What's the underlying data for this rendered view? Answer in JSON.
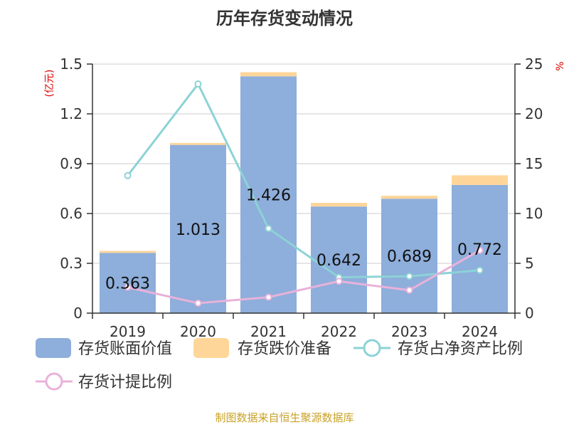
{
  "colors": {
    "book_value": "#8EAEDB",
    "impairment": "#FFD699",
    "ratio_net_assets": "#8CD3D6",
    "provision_ratio": "#E8B2DA",
    "axis": "#333333",
    "grid": "#CCCCCC",
    "unit_label": "#E00000",
    "footer": "#C9A227"
  },
  "chart_data": {
    "type": "bar",
    "title": "历年存货变动情况",
    "categories": [
      "2019",
      "2020",
      "2021",
      "2022",
      "2023",
      "2024"
    ],
    "y_left": {
      "unit": "(亿元)",
      "ylim": [
        0,
        1.5
      ],
      "ticks": [
        "0",
        "0.3",
        "0.6",
        "0.9",
        "1.2",
        "1.5"
      ]
    },
    "y_right": {
      "unit": "%",
      "ylim": [
        0,
        25
      ],
      "ticks": [
        "0",
        "5",
        "10",
        "15",
        "20",
        "25"
      ]
    },
    "grid": true,
    "legend_position": "bottom",
    "series": [
      {
        "name": "存货账面价值",
        "kind": "bar",
        "axis": "left",
        "values": [
          0.363,
          1.013,
          1.426,
          0.642,
          0.689,
          0.772
        ],
        "labels": [
          "0.363",
          "1.013",
          "1.426",
          "0.642",
          "0.689",
          "0.772"
        ]
      },
      {
        "name": "存货跌价准备",
        "kind": "bar-stacked",
        "axis": "left",
        "values": [
          0.012,
          0.012,
          0.025,
          0.022,
          0.018,
          0.058
        ]
      },
      {
        "name": "存货占净资产比例",
        "kind": "line",
        "axis": "right",
        "values": [
          13.8,
          23.0,
          8.5,
          3.6,
          3.7,
          4.3
        ]
      },
      {
        "name": "存货计提比例",
        "kind": "line",
        "axis": "right",
        "values": [
          2.6,
          1.0,
          1.6,
          3.2,
          2.3,
          6.3
        ]
      }
    ]
  },
  "footer": {
    "source_text": "制图数据来自恒生聚源数据库"
  }
}
